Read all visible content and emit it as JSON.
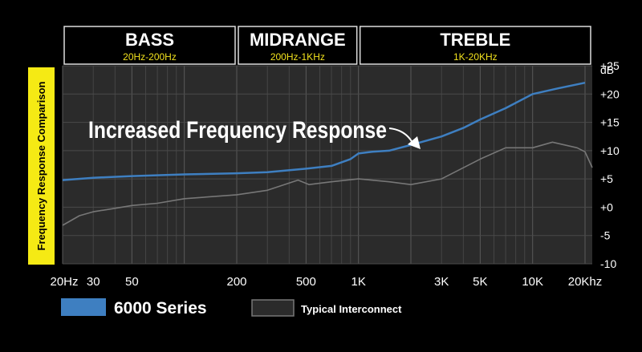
{
  "chart_data": {
    "type": "line",
    "side_label": "Frequency Response Comparison",
    "annotation": "Increased Frequency Response",
    "ylabel": "dB",
    "ylim": [
      -10,
      25
    ],
    "xlim": [
      20,
      22000
    ],
    "x_scale": "log",
    "y_ticks": [
      {
        "value": 25,
        "label": "+25"
      },
      {
        "value": 20,
        "label": "+20"
      },
      {
        "value": 15,
        "label": "+15"
      },
      {
        "value": 10,
        "label": "+10"
      },
      {
        "value": 5,
        "label": "+5"
      },
      {
        "value": 0,
        "label": "+0"
      },
      {
        "value": -5,
        "label": "-5"
      },
      {
        "value": -10,
        "label": "-10"
      }
    ],
    "x_ticks": [
      {
        "value": 20,
        "label": "20Hz"
      },
      {
        "value": 30,
        "label": "30"
      },
      {
        "value": 50,
        "label": "50"
      },
      {
        "value": 200,
        "label": "200"
      },
      {
        "value": 500,
        "label": "500"
      },
      {
        "value": 1000,
        "label": "1K"
      },
      {
        "value": 3000,
        "label": "3K"
      },
      {
        "value": 5000,
        "label": "5K"
      },
      {
        "value": 10000,
        "label": "10K"
      },
      {
        "value": 20000,
        "label": "20Khz"
      }
    ],
    "bands": [
      {
        "title": "BASS",
        "range": "20Hz-200Hz",
        "from": 20,
        "to": 200
      },
      {
        "title": "MIDRANGE",
        "range": "200Hz-1KHz",
        "from": 200,
        "to": 1000
      },
      {
        "title": "TREBLE",
        "range": "1K-20KHz",
        "from": 1000,
        "to": 22000
      }
    ],
    "series": [
      {
        "name": "6000 Series",
        "color": "#3e7fc1",
        "points": [
          [
            20,
            4.8
          ],
          [
            30,
            5.2
          ],
          [
            50,
            5.5
          ],
          [
            100,
            5.8
          ],
          [
            200,
            6.0
          ],
          [
            300,
            6.2
          ],
          [
            500,
            6.8
          ],
          [
            700,
            7.3
          ],
          [
            900,
            8.5
          ],
          [
            1000,
            9.5
          ],
          [
            1200,
            9.8
          ],
          [
            1500,
            10.0
          ],
          [
            2000,
            11.0
          ],
          [
            3000,
            12.5
          ],
          [
            4000,
            14.0
          ],
          [
            5000,
            15.5
          ],
          [
            7000,
            17.5
          ],
          [
            10000,
            20.0
          ],
          [
            14000,
            21.0
          ],
          [
            20000,
            22.0
          ]
        ]
      },
      {
        "name": "Typical Interconnect",
        "color": "#777777",
        "points": [
          [
            20,
            -3.2
          ],
          [
            25,
            -1.5
          ],
          [
            30,
            -0.8
          ],
          [
            40,
            -0.2
          ],
          [
            50,
            0.3
          ],
          [
            70,
            0.7
          ],
          [
            100,
            1.5
          ],
          [
            200,
            2.2
          ],
          [
            300,
            3.0
          ],
          [
            450,
            4.8
          ],
          [
            520,
            4.0
          ],
          [
            700,
            4.5
          ],
          [
            1000,
            5.0
          ],
          [
            1500,
            4.5
          ],
          [
            2000,
            4.0
          ],
          [
            3000,
            5.0
          ],
          [
            5000,
            8.5
          ],
          [
            7000,
            10.5
          ],
          [
            10000,
            10.5
          ],
          [
            13000,
            11.5
          ],
          [
            18000,
            10.5
          ],
          [
            20000,
            9.8
          ],
          [
            22000,
            7.0
          ]
        ]
      }
    ]
  }
}
